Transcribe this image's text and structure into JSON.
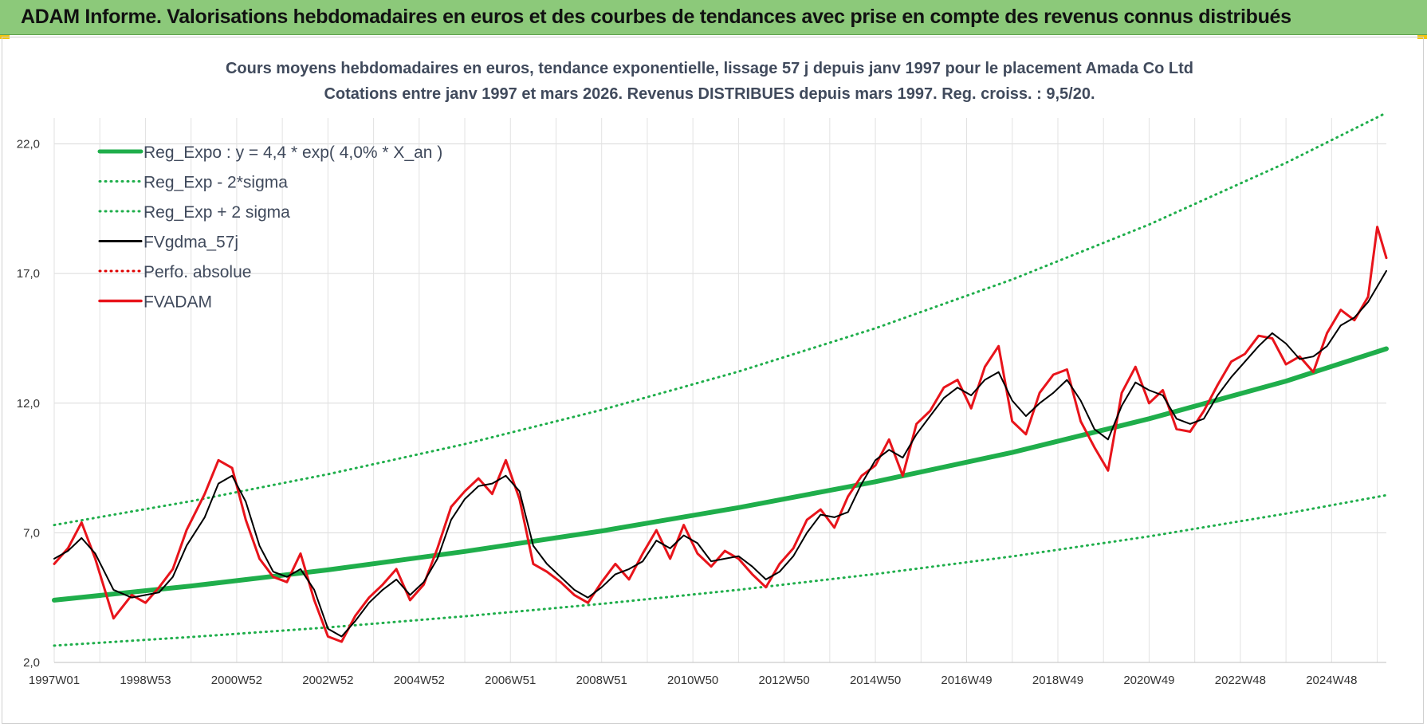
{
  "banner": {
    "title": "ADAM Informe. Valorisations hebdomadaires en euros et des courbes de tendances avec prise en compte des revenus connus distribués",
    "background": "#8cc97a"
  },
  "chart_data": {
    "type": "line",
    "title": "Cours moyens hebdomadaires en euros, tendance exponentielle, lissage 57 j depuis janv 1997  pour le placement Amada Co Ltd",
    "subtitle": "Cotations entre janv 1997 et mars 2026. Revenus DISTRIBUES depuis mars 1997.  Reg. croiss. : 9,5/20.",
    "xlabel": "",
    "ylabel": "",
    "x_unit": "year",
    "xlim": [
      1997.0,
      2026.2
    ],
    "ylim": [
      2.0,
      23.0
    ],
    "y_ticks": [
      2.0,
      7.0,
      12.0,
      17.0,
      22.0
    ],
    "y_tick_labels": [
      "2,0",
      "7,0",
      "12,0",
      "17,0",
      "22,0"
    ],
    "x_ticks": [
      1997.0,
      1999.0,
      2001.0,
      2003.0,
      2005.0,
      2007.0,
      2009.0,
      2011.0,
      2013.0,
      2015.0,
      2017.0,
      2019.0,
      2021.0,
      2023.0,
      2025.0
    ],
    "x_tick_labels": [
      "1997W01",
      "1998W53",
      "2000W52",
      "2002W52",
      "2004W52",
      "2006W51",
      "2008W51",
      "2010W50",
      "2012W50",
      "2014W50",
      "2016W49",
      "2018W49",
      "2020W49",
      "2022W48",
      "2024W48"
    ],
    "grid": true,
    "legend_position": "top-left",
    "legend": [
      {
        "label": "Reg_Expo : y = 4,4 * exp( 4,0% *  X_an )",
        "color": "#1fae4b",
        "style": "solid-thick"
      },
      {
        "label": "Reg_Exp - 2*sigma",
        "color": "#1fae4b",
        "style": "dotted"
      },
      {
        "label": "Reg_Exp + 2 sigma",
        "color": "#1fae4b",
        "style": "dotted"
      },
      {
        "label": "FVgdma_57j",
        "color": "#000000",
        "style": "solid"
      },
      {
        "label": "Perfo. absolue",
        "color": "#e00000",
        "style": "dotted"
      },
      {
        "label": "FVADAM",
        "color": "#e8141b",
        "style": "solid-thick"
      }
    ],
    "series": [
      {
        "name": "Reg_Expo : y = 4,4 * exp( 4,0% *  X_an )",
        "color": "#1fae4b",
        "x": [
          1997.0,
          2000.0,
          2003.0,
          2006.0,
          2009.0,
          2012.0,
          2015.0,
          2018.0,
          2021.0,
          2024.0,
          2026.2
        ],
        "values": [
          4.4,
          4.95,
          5.57,
          6.28,
          7.07,
          7.97,
          8.97,
          10.1,
          11.4,
          12.85,
          14.1
        ]
      },
      {
        "name": "Reg_Exp - 2*sigma",
        "color": "#1fae4b",
        "x": [
          1997.0,
          2000.0,
          2003.0,
          2006.0,
          2009.0,
          2012.0,
          2015.0,
          2018.0,
          2021.0,
          2024.0,
          2026.2
        ],
        "values": [
          2.65,
          2.98,
          3.35,
          3.78,
          4.26,
          4.8,
          5.41,
          6.09,
          6.86,
          7.74,
          8.45
        ]
      },
      {
        "name": "Reg_Exp + 2 sigma",
        "color": "#1fae4b",
        "x": [
          1997.0,
          2000.0,
          2003.0,
          2006.0,
          2009.0,
          2012.0,
          2015.0,
          2018.0,
          2021.0,
          2024.0,
          2026.2
        ],
        "values": [
          7.3,
          8.22,
          9.26,
          10.42,
          11.74,
          13.22,
          14.89,
          16.77,
          18.89,
          21.27,
          23.2
        ]
      },
      {
        "name": "FVgdma_57j",
        "color": "#000000",
        "x": [
          1997.0,
          1997.3,
          1997.6,
          1997.9,
          1998.3,
          1998.7,
          1999.0,
          1999.3,
          1999.6,
          1999.9,
          2000.3,
          2000.6,
          2000.9,
          2001.2,
          2001.5,
          2001.8,
          2002.1,
          2002.4,
          2002.7,
          2003.0,
          2003.3,
          2003.6,
          2003.9,
          2004.2,
          2004.5,
          2004.8,
          2005.1,
          2005.4,
          2005.7,
          2006.0,
          2006.3,
          2006.6,
          2006.9,
          2007.2,
          2007.5,
          2007.8,
          2008.1,
          2008.4,
          2008.7,
          2009.0,
          2009.3,
          2009.6,
          2009.9,
          2010.2,
          2010.5,
          2010.8,
          2011.1,
          2011.4,
          2011.7,
          2012.0,
          2012.3,
          2012.6,
          2012.9,
          2013.2,
          2013.5,
          2013.8,
          2014.1,
          2014.4,
          2014.7,
          2015.0,
          2015.3,
          2015.6,
          2015.9,
          2016.2,
          2016.5,
          2016.8,
          2017.1,
          2017.4,
          2017.7,
          2018.0,
          2018.3,
          2018.6,
          2018.9,
          2019.2,
          2019.5,
          2019.8,
          2020.1,
          2020.4,
          2020.7,
          2021.0,
          2021.3,
          2021.6,
          2021.9,
          2022.2,
          2022.5,
          2022.8,
          2023.1,
          2023.4,
          2023.7,
          2024.0,
          2024.3,
          2024.6,
          2024.9,
          2025.2,
          2025.5,
          2025.8,
          2026.0,
          2026.2
        ],
        "values": [
          6.0,
          6.3,
          6.8,
          6.2,
          4.8,
          4.5,
          4.6,
          4.7,
          5.3,
          6.5,
          7.6,
          8.9,
          9.2,
          8.2,
          6.5,
          5.5,
          5.3,
          5.6,
          4.8,
          3.3,
          3.0,
          3.6,
          4.3,
          4.8,
          5.2,
          4.6,
          5.1,
          6.0,
          7.5,
          8.3,
          8.8,
          8.9,
          9.2,
          8.6,
          6.5,
          5.8,
          5.3,
          4.8,
          4.5,
          4.9,
          5.4,
          5.6,
          5.9,
          6.7,
          6.4,
          6.9,
          6.6,
          5.9,
          6.0,
          6.1,
          5.7,
          5.2,
          5.5,
          6.1,
          7.0,
          7.7,
          7.6,
          7.8,
          8.9,
          9.8,
          10.2,
          9.9,
          10.8,
          11.5,
          12.2,
          12.6,
          12.3,
          12.9,
          13.2,
          12.1,
          11.5,
          12.0,
          12.4,
          12.9,
          12.1,
          11.0,
          10.6,
          11.9,
          12.8,
          12.5,
          12.3,
          11.4,
          11.2,
          11.4,
          12.3,
          13.0,
          13.6,
          14.2,
          14.7,
          14.3,
          13.7,
          13.8,
          14.2,
          15.0,
          15.3,
          15.9,
          16.5,
          17.1
        ]
      },
      {
        "name": "Perfo. absolue",
        "color": "#e00000",
        "x": [],
        "values": []
      },
      {
        "name": "FVADAM",
        "color": "#e8141b",
        "x": [
          1997.0,
          1997.3,
          1997.6,
          1997.9,
          1998.3,
          1998.7,
          1999.0,
          1999.3,
          1999.6,
          1999.9,
          2000.3,
          2000.6,
          2000.9,
          2001.2,
          2001.5,
          2001.8,
          2002.1,
          2002.4,
          2002.7,
          2003.0,
          2003.3,
          2003.6,
          2003.9,
          2004.2,
          2004.5,
          2004.8,
          2005.1,
          2005.4,
          2005.7,
          2006.0,
          2006.3,
          2006.6,
          2006.9,
          2007.2,
          2007.5,
          2007.8,
          2008.1,
          2008.4,
          2008.7,
          2009.0,
          2009.3,
          2009.6,
          2009.9,
          2010.2,
          2010.5,
          2010.8,
          2011.1,
          2011.4,
          2011.7,
          2012.0,
          2012.3,
          2012.6,
          2012.9,
          2013.2,
          2013.5,
          2013.8,
          2014.1,
          2014.4,
          2014.7,
          2015.0,
          2015.3,
          2015.6,
          2015.9,
          2016.2,
          2016.5,
          2016.8,
          2017.1,
          2017.4,
          2017.7,
          2018.0,
          2018.3,
          2018.6,
          2018.9,
          2019.2,
          2019.5,
          2019.8,
          2020.1,
          2020.4,
          2020.7,
          2021.0,
          2021.3,
          2021.6,
          2021.9,
          2022.2,
          2022.5,
          2022.8,
          2023.1,
          2023.4,
          2023.7,
          2024.0,
          2024.3,
          2024.6,
          2024.9,
          2025.2,
          2025.5,
          2025.8,
          2026.0,
          2026.2
        ],
        "values": [
          5.8,
          6.4,
          7.4,
          6.0,
          3.7,
          4.6,
          4.3,
          4.9,
          5.6,
          7.1,
          8.5,
          9.8,
          9.5,
          7.5,
          6.0,
          5.3,
          5.1,
          6.2,
          4.4,
          3.0,
          2.8,
          3.8,
          4.5,
          5.0,
          5.6,
          4.4,
          5.0,
          6.4,
          8.0,
          8.6,
          9.1,
          8.5,
          9.8,
          8.3,
          5.8,
          5.5,
          5.1,
          4.6,
          4.3,
          5.1,
          5.8,
          5.2,
          6.2,
          7.1,
          6.0,
          7.3,
          6.2,
          5.7,
          6.3,
          6.0,
          5.4,
          4.9,
          5.8,
          6.4,
          7.5,
          7.9,
          7.2,
          8.4,
          9.2,
          9.6,
          10.6,
          9.2,
          11.2,
          11.7,
          12.6,
          12.9,
          11.8,
          13.4,
          14.2,
          11.3,
          10.8,
          12.4,
          13.1,
          13.3,
          11.3,
          10.3,
          9.4,
          12.4,
          13.4,
          12.0,
          12.5,
          11.0,
          10.9,
          11.7,
          12.7,
          13.6,
          13.9,
          14.6,
          14.5,
          13.5,
          13.8,
          13.2,
          14.7,
          15.6,
          15.2,
          16.1,
          18.8,
          17.6
        ]
      }
    ]
  }
}
